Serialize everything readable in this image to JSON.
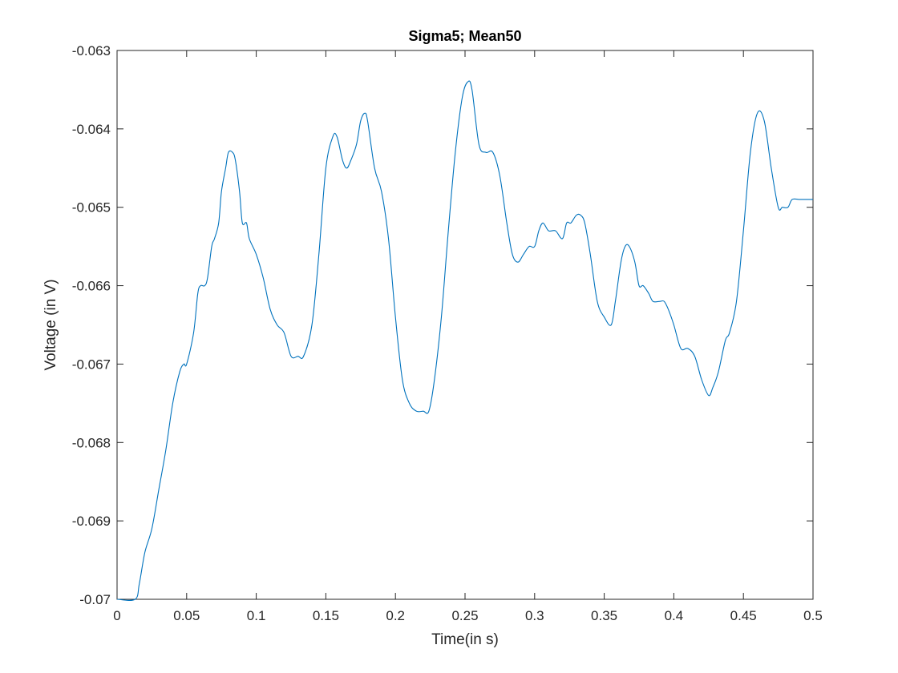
{
  "chart_data": {
    "type": "line",
    "title": "Sigma5; Mean50",
    "xlabel": "Time(in s)",
    "ylabel": "Voltage (in V)",
    "xlim": [
      0,
      0.5
    ],
    "ylim": [
      -0.07,
      -0.063
    ],
    "x_ticks": [
      "0",
      "0.05",
      "0.1",
      "0.15",
      "0.2",
      "0.25",
      "0.3",
      "0.35",
      "0.4",
      "0.45",
      "0.5"
    ],
    "y_ticks": [
      "-0.063",
      "-0.064",
      "-0.065",
      "-0.066",
      "-0.067",
      "-0.068",
      "-0.069",
      "-0.07"
    ],
    "grid": false,
    "line_color": "#0072BD",
    "series": [
      {
        "x": [
          0,
          0.013,
          0.016,
          0.02,
          0.025,
          0.03,
          0.035,
          0.04,
          0.045,
          0.048,
          0.05,
          0.055,
          0.058,
          0.06,
          0.063,
          0.065,
          0.068,
          0.07,
          0.073,
          0.075,
          0.078,
          0.08,
          0.083,
          0.085,
          0.088,
          0.09,
          0.093,
          0.095,
          0.1,
          0.105,
          0.11,
          0.115,
          0.12,
          0.125,
          0.13,
          0.134,
          0.14,
          0.145,
          0.15,
          0.155,
          0.158,
          0.162,
          0.165,
          0.168,
          0.172,
          0.175,
          0.178,
          0.18,
          0.185,
          0.19,
          0.195,
          0.2,
          0.205,
          0.21,
          0.215,
          0.22,
          0.224,
          0.228,
          0.233,
          0.238,
          0.243,
          0.248,
          0.252,
          0.255,
          0.26,
          0.265,
          0.27,
          0.275,
          0.28,
          0.284,
          0.288,
          0.292,
          0.296,
          0.3,
          0.303,
          0.306,
          0.31,
          0.315,
          0.32,
          0.323,
          0.326,
          0.33,
          0.333,
          0.336,
          0.34,
          0.345,
          0.35,
          0.355,
          0.358,
          0.362,
          0.365,
          0.368,
          0.372,
          0.375,
          0.378,
          0.382,
          0.385,
          0.39,
          0.393,
          0.396,
          0.4,
          0.405,
          0.41,
          0.415,
          0.42,
          0.425,
          0.428,
          0.432,
          0.437,
          0.44,
          0.445,
          0.45,
          0.455,
          0.46,
          0.465,
          0.47,
          0.475,
          0.478,
          0.482,
          0.485,
          0.49,
          0.495,
          0.5
        ],
        "y": [
          -0.07,
          -0.07,
          -0.0698,
          -0.0694,
          -0.0691,
          -0.0686,
          -0.0681,
          -0.0675,
          -0.0671,
          -0.067,
          -0.067,
          -0.0666,
          -0.0661,
          -0.066,
          -0.066,
          -0.0659,
          -0.0655,
          -0.0654,
          -0.0652,
          -0.0648,
          -0.0645,
          -0.0643,
          -0.0643,
          -0.0644,
          -0.0648,
          -0.0652,
          -0.0652,
          -0.0654,
          -0.0656,
          -0.0659,
          -0.0663,
          -0.0665,
          -0.0666,
          -0.0669,
          -0.0669,
          -0.0669,
          -0.0665,
          -0.0656,
          -0.0645,
          -0.0641,
          -0.0641,
          -0.0644,
          -0.0645,
          -0.0644,
          -0.0642,
          -0.0639,
          -0.0638,
          -0.0639,
          -0.0645,
          -0.0648,
          -0.0654,
          -0.0664,
          -0.0672,
          -0.0675,
          -0.0676,
          -0.0676,
          -0.0676,
          -0.0672,
          -0.0664,
          -0.0653,
          -0.0643,
          -0.0636,
          -0.0634,
          -0.0635,
          -0.0642,
          -0.0643,
          -0.0643,
          -0.0646,
          -0.0652,
          -0.0656,
          -0.0657,
          -0.0656,
          -0.0655,
          -0.0655,
          -0.0653,
          -0.0652,
          -0.0653,
          -0.0653,
          -0.0654,
          -0.0652,
          -0.0652,
          -0.0651,
          -0.0651,
          -0.0652,
          -0.0656,
          -0.0662,
          -0.0664,
          -0.0665,
          -0.0662,
          -0.0657,
          -0.0655,
          -0.0655,
          -0.0657,
          -0.066,
          -0.066,
          -0.0661,
          -0.0662,
          -0.0662,
          -0.0662,
          -0.0663,
          -0.0665,
          -0.0668,
          -0.0668,
          -0.0669,
          -0.0672,
          -0.0674,
          -0.0673,
          -0.0671,
          -0.0667,
          -0.0666,
          -0.0662,
          -0.0653,
          -0.0643,
          -0.0638,
          -0.0639,
          -0.0645,
          -0.065,
          -0.065,
          -0.065,
          -0.0649,
          -0.0649,
          -0.0649,
          -0.0649
        ]
      }
    ]
  }
}
